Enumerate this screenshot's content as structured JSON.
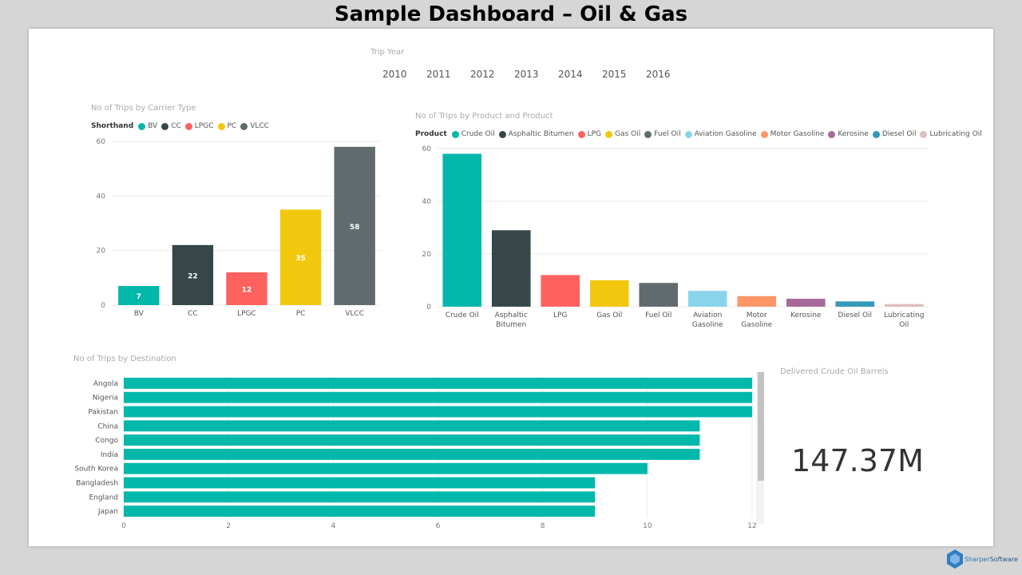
{
  "page": {
    "title": "Sample Dashboard – Oil & Gas"
  },
  "slicer": {
    "title": "Trip Year",
    "years": [
      "2010",
      "2011",
      "2012",
      "2013",
      "2014",
      "2015",
      "2016"
    ]
  },
  "carrier_chart": {
    "title": "No of Trips by Carrier Type",
    "legend_title": "Shorthand"
  },
  "product_chart": {
    "title": "No of Trips by Product and Product",
    "legend_title": "Product"
  },
  "destination_chart": {
    "title": "No of Trips by Destination"
  },
  "kpi": {
    "title": "Delivered Crude Oil Barrels",
    "value": "147.37M"
  },
  "brand": {
    "part1": "Sharper",
    "part2": "Software"
  },
  "chart_data": [
    {
      "type": "bar",
      "title": "No of Trips by Carrier Type",
      "categories": [
        "BV",
        "CC",
        "LPGC",
        "PC",
        "VLCC"
      ],
      "values": [
        7,
        22,
        12,
        35,
        58
      ],
      "data_labels": [
        "7",
        "22",
        "12",
        "35",
        "58"
      ],
      "colors": [
        "#01B8AA",
        "#374649",
        "#FD625E",
        "#F2C80F",
        "#5F6B6D"
      ],
      "legend_title": "Shorthand",
      "legend": [
        "BV",
        "CC",
        "LPGC",
        "PC",
        "VLCC"
      ],
      "legend_position": "top-left",
      "ylim": [
        0,
        60
      ],
      "yticks": [
        "0",
        "20",
        "40",
        "60"
      ],
      "grid": true
    },
    {
      "type": "bar",
      "title": "No of Trips by Product and Product",
      "categories": [
        "Crude Oil",
        "Asphaltic Bitumen",
        "LPG",
        "Gas Oil",
        "Fuel Oil",
        "Aviation Gasoline",
        "Motor Gasoline",
        "Kerosine",
        "Diesel Oil",
        "Lubricating Oil"
      ],
      "category_labels": [
        [
          "Crude Oil"
        ],
        [
          "Asphaltic",
          "Bitumen"
        ],
        [
          "LPG"
        ],
        [
          "Gas Oil"
        ],
        [
          "Fuel Oil"
        ],
        [
          "Aviation",
          "Gasoline"
        ],
        [
          "Motor",
          "Gasoline"
        ],
        [
          "Kerosine"
        ],
        [
          "Diesel Oil"
        ],
        [
          "Lubricating",
          "Oil"
        ]
      ],
      "values": [
        58,
        29,
        12,
        10,
        9,
        6,
        4,
        3,
        2,
        1
      ],
      "colors": [
        "#01B8AA",
        "#374649",
        "#FD625E",
        "#F2C80F",
        "#5F6B6D",
        "#8AD4EB",
        "#FE9666",
        "#A66999",
        "#3599B8",
        "#DFBFBF"
      ],
      "legend_title": "Product",
      "legend": [
        "Crude Oil",
        "Asphaltic Bitumen",
        "LPG",
        "Gas Oil",
        "Fuel Oil",
        "Aviation Gasoline",
        "Motor Gasoline",
        "Kerosine",
        "Diesel Oil",
        "Lubricating Oil"
      ],
      "legend_position": "top-left",
      "ylim": [
        0,
        60
      ],
      "yticks": [
        "0",
        "20",
        "40",
        "60"
      ],
      "grid": true
    },
    {
      "type": "bar",
      "orientation": "horizontal",
      "title": "No of Trips by Destination",
      "categories": [
        "Angola",
        "Nigeria",
        "Pakistan",
        "China",
        "Congo",
        "India",
        "South Korea",
        "Bangladesh",
        "England",
        "Japan"
      ],
      "values": [
        12,
        12,
        12,
        11,
        11,
        11,
        10,
        9,
        9,
        9
      ],
      "color": "#01B8AA",
      "xlim": [
        0,
        12
      ],
      "xticks": [
        "0",
        "2",
        "4",
        "6",
        "8",
        "10",
        "12"
      ],
      "grid": true
    }
  ]
}
